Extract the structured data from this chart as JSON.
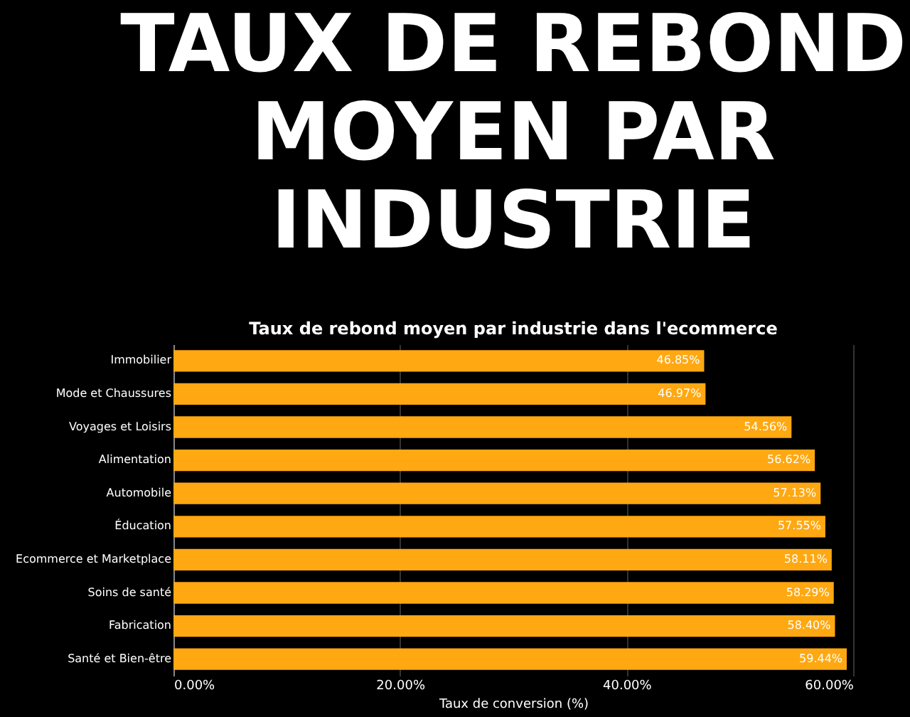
{
  "chart_data": {
    "type": "bar",
    "orientation": "horizontal",
    "title": "TAUX DE REBOND MOYEN PAR INDUSTRIE",
    "subtitle": "Taux de rebond moyen par industrie dans l'ecommerce",
    "xlabel": "Taux de conversion (%)",
    "categories": [
      "Immobilier",
      "Mode et Chaussures",
      "Voyages et Loisirs",
      "Alimentation",
      "Automobile",
      "Éducation",
      "Ecommerce et Marketplace",
      "Soins de santé",
      "Fabrication",
      "Santé et Bien-être"
    ],
    "values": [
      46.85,
      46.97,
      54.56,
      56.62,
      57.13,
      57.55,
      58.11,
      58.29,
      58.4,
      59.44
    ],
    "value_labels": [
      "46.85%",
      "46.97%",
      "54.56%",
      "56.62%",
      "57.13%",
      "57.55%",
      "58.11%",
      "58.29%",
      "58.40%",
      "59.44%"
    ],
    "color": "#ffa812",
    "xlim": [
      0,
      60
    ],
    "xticks": [
      {
        "value": 0,
        "label": "0.00%"
      },
      {
        "value": 20,
        "label": "20.00%"
      },
      {
        "value": 40,
        "label": "40.00%"
      },
      {
        "value": 60,
        "label": "60.00%"
      }
    ],
    "grid": "x"
  }
}
